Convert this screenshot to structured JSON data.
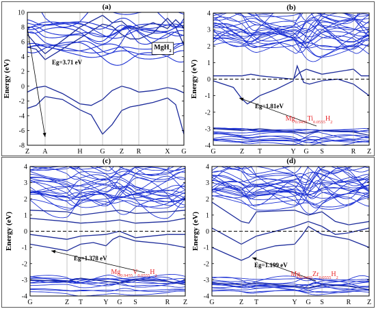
{
  "figure": {
    "panels": [
      {
        "label": "(a)",
        "ylabel": "Energy (eV)",
        "ylim": [
          -8,
          10
        ],
        "yticks": [
          -8,
          -6,
          -4,
          -2,
          0,
          2,
          4,
          6,
          8,
          10
        ],
        "kpoints": [
          "Z",
          "A",
          "H",
          "G",
          "Z",
          "R",
          "X",
          "G"
        ],
        "gap_label": "Eg=3.71 eV",
        "compound": "MgH2",
        "compound_parts": [
          {
            "t": "MgH",
            "sub": false
          },
          {
            "t": "2",
            "sub": true
          }
        ],
        "compound_color": "#000000",
        "compound_boxed": true,
        "fermi_line": false
      },
      {
        "label": "(b)",
        "ylabel": "Energy (eV)",
        "ylim": [
          -4,
          4
        ],
        "yticks": [
          -4,
          -3,
          -2,
          -1,
          0,
          1,
          2,
          3,
          4
        ],
        "kpoints": [
          "G",
          "Z",
          "T",
          "Y",
          "G",
          "S",
          "R",
          "Z"
        ],
        "gap_label": "Eg=1.81eV",
        "compound": "Mg0.9455Ti0.0555H2",
        "compound_parts": [
          {
            "t": "Mg",
            "sub": false
          },
          {
            "t": "0.9455",
            "sub": true
          },
          {
            "t": "Ti",
            "sub": false
          },
          {
            "t": "0.0555",
            "sub": true
          },
          {
            "t": "H",
            "sub": false
          },
          {
            "t": "2",
            "sub": true
          }
        ],
        "compound_color": "#e8262a",
        "compound_boxed": false,
        "fermi_line": true
      },
      {
        "label": "(c)",
        "ylabel": "Energy (eV)",
        "ylim": [
          -4,
          4
        ],
        "yticks": [
          -4,
          -3,
          -2,
          -1,
          0,
          1,
          2,
          3,
          4
        ],
        "kpoints": [
          "G",
          "Z",
          "T",
          "Y",
          "G",
          "S",
          "R",
          "Z"
        ],
        "gap_label": "Eg=1.378 eV",
        "compound": "Mg0.9455V0.0555H2",
        "compound_parts": [
          {
            "t": "Mg",
            "sub": false
          },
          {
            "t": "0.9455",
            "sub": true
          },
          {
            "t": "V",
            "sub": false
          },
          {
            "t": "0.0555",
            "sub": true
          },
          {
            "t": "H",
            "sub": false
          },
          {
            "t": "2",
            "sub": true
          }
        ],
        "compound_color": "#e8262a",
        "compound_boxed": false,
        "fermi_line": true
      },
      {
        "label": "(d)",
        "ylabel": "Energy (eV)",
        "ylim": [
          -4,
          4
        ],
        "yticks": [
          -4,
          -3,
          -2,
          -1,
          0,
          1,
          2,
          3,
          4
        ],
        "kpoints": [
          "G",
          "Z",
          "T",
          "Y",
          "G",
          "S",
          "R",
          "Z"
        ],
        "gap_label": "Eg=1.199 eV",
        "compound": "Mg0.9455Zr0.0555H2",
        "compound_parts": [
          {
            "t": "Mg",
            "sub": false
          },
          {
            "t": "0.9455",
            "sub": true
          },
          {
            "t": "Zr",
            "sub": false
          },
          {
            "t": "0.0555",
            "sub": true
          },
          {
            "t": "H",
            "sub": false
          },
          {
            "t": "2",
            "sub": true
          }
        ],
        "compound_color": "#e8262a",
        "compound_boxed": false,
        "fermi_line": true
      }
    ]
  },
  "chart_data": [
    {
      "type": "line",
      "title": "(a)",
      "ylabel": "Energy (eV)",
      "ylim": [
        -8,
        10
      ],
      "xticklabels": [
        "Z",
        "A",
        "H",
        "G",
        "Z",
        "R",
        "X",
        "G"
      ],
      "annotations": [
        "Eg=3.71 eV",
        "MgH2"
      ],
      "grid": false,
      "series": [
        {
          "x": [
            0,
            0.5,
            1,
            2,
            3,
            3.5,
            4,
            4.5,
            5,
            5.5,
            6,
            6.5,
            7
          ],
          "y": [
            5.3,
            5.0,
            3.6,
            6.5,
            8.4,
            8.1,
            7.0,
            6.4,
            6.4,
            7.2,
            9.2,
            8.0,
            5.6
          ]
        },
        {
          "x": [
            0,
            0.5,
            1,
            2,
            3,
            3.5,
            4,
            4.5,
            5,
            5.5,
            6,
            6.5,
            7
          ],
          "y": [
            7.0,
            5.6,
            4.4,
            8.0,
            9.6,
            8.6,
            8.8,
            7.8,
            7.9,
            8.6,
            7.8,
            9.0,
            7.9
          ]
        },
        {
          "x": [
            0,
            0.5,
            1,
            1.5,
            2,
            2.5,
            3,
            3.5,
            4,
            4.5,
            5,
            5.5,
            6,
            6.5,
            7
          ],
          "y": [
            -0.8,
            -0.2,
            0.0,
            -1.0,
            -2.4,
            -2.6,
            -1.8,
            -0.6,
            0.0,
            -0.3,
            -0.8,
            -0.6,
            -0.2,
            -0.4,
            -0.9
          ]
        },
        {
          "x": [
            0,
            0.5,
            1,
            1.5,
            2,
            2.5,
            3,
            3.5,
            4,
            4.5,
            5,
            5.5,
            6,
            6.5,
            7
          ],
          "y": [
            -3.0,
            -2.6,
            -1.4,
            -1.8,
            -3.2,
            -3.9,
            -6.5,
            -5.2,
            -3.3,
            -2.8,
            -2.6,
            -2.2,
            -1.6,
            -2.5,
            -6.5
          ]
        }
      ]
    },
    {
      "type": "line",
      "title": "(b)",
      "ylabel": "Energy (eV)",
      "ylim": [
        -4,
        4
      ],
      "xticklabels": [
        "G",
        "Z",
        "T",
        "Y",
        "G",
        "S",
        "R",
        "Z"
      ],
      "annotations": [
        "Eg=1.81eV",
        "Mg0.9455Ti0.0555H2"
      ],
      "grid": false,
      "series": [
        {
          "x": [
            0,
            1,
            1.5,
            2,
            2.5,
            3,
            3.5,
            4,
            5,
            6,
            6.5,
            7
          ],
          "y": [
            0.2,
            0.2,
            0.3,
            0.2,
            0.1,
            0.0,
            0.4,
            0.6,
            0.3,
            0.6,
            0.2,
            0.2
          ]
        },
        {
          "x": [
            0,
            0.7,
            1,
            1.3,
            1.6,
            2,
            2.5,
            3,
            3.3,
            3.8,
            4.2,
            5,
            5.5,
            6,
            7
          ],
          "y": [
            -0.1,
            -0.5,
            -1.2,
            -1.5,
            -1.3,
            -1.0,
            -0.6,
            -0.1,
            0.8,
            -0.2,
            -0.3,
            -0.1,
            0.0,
            -0.3,
            -1.0
          ]
        },
        {
          "x": [
            0,
            1,
            2,
            3,
            4,
            5,
            6,
            7
          ],
          "y": [
            -3.0,
            -3.1,
            -3.0,
            -3.2,
            -3.3,
            -3.1,
            -3.2,
            -3.4
          ]
        }
      ]
    },
    {
      "type": "line",
      "title": "(c)",
      "ylabel": "Energy (eV)",
      "ylim": [
        -4,
        4
      ],
      "xticklabels": [
        "G",
        "Z",
        "T",
        "Y",
        "G",
        "S",
        "R",
        "Z"
      ],
      "annotations": [
        "Eg=1.378 eV",
        "Mg0.9455V0.0555H2"
      ],
      "grid": false,
      "series": [
        {
          "x": [
            0,
            1,
            2,
            3,
            4,
            5,
            6,
            7
          ],
          "y": [
            1.3,
            1.2,
            1.0,
            1.2,
            1.3,
            1.1,
            1.2,
            1.3
          ]
        },
        {
          "x": [
            0,
            1,
            2,
            3,
            4,
            5,
            6,
            7
          ],
          "y": [
            0.8,
            0.6,
            0.5,
            0.6,
            0.7,
            0.5,
            0.6,
            0.8
          ]
        },
        {
          "x": [
            0,
            1,
            2,
            3,
            4,
            5,
            6,
            7
          ],
          "y": [
            -0.2,
            -0.5,
            -0.3,
            -0.2,
            0.0,
            -0.4,
            -0.2,
            -0.2
          ]
        },
        {
          "x": [
            0,
            0.5,
            1,
            1.5,
            2,
            2.5,
            3,
            3.5,
            4,
            5,
            6,
            7
          ],
          "y": [
            -0.8,
            -1.0,
            -1.2,
            -1.0,
            -0.8,
            -0.7,
            -0.9,
            -0.5,
            -0.3,
            -0.6,
            -0.8,
            -1.0
          ]
        },
        {
          "x": [
            0,
            1,
            2,
            3,
            4,
            5,
            6,
            7
          ],
          "y": [
            -3.0,
            -3.1,
            -2.9,
            -3.1,
            -3.2,
            -3.0,
            -3.1,
            -3.3
          ]
        }
      ]
    },
    {
      "type": "line",
      "title": "(d)",
      "ylabel": "Energy (eV)",
      "ylim": [
        -4,
        4
      ],
      "xticklabels": [
        "G",
        "Z",
        "T",
        "Y",
        "G",
        "S",
        "R",
        "Z"
      ],
      "annotations": [
        "Eg=1.199 eV",
        "Mg0.9455Zr0.0555H2"
      ],
      "grid": false,
      "series": [
        {
          "x": [
            0,
            1,
            1.5,
            2,
            3,
            4,
            5,
            5.5,
            6,
            7
          ],
          "y": [
            1.8,
            0.6,
            0.5,
            1.2,
            1.3,
            1.0,
            1.2,
            0.6,
            0.4,
            0.6
          ]
        },
        {
          "x": [
            0,
            0.5,
            1,
            2,
            3,
            4,
            5,
            5.5,
            6,
            7
          ],
          "y": [
            0.2,
            -0.3,
            -0.8,
            -0.3,
            0.3,
            0.6,
            0.3,
            -0.2,
            -0.1,
            0.2
          ]
        },
        {
          "x": [
            0,
            0.5,
            1,
            1.5,
            2,
            2.5,
            3,
            3.5,
            4,
            5,
            6,
            7
          ],
          "y": [
            -1.0,
            -1.4,
            -1.8,
            -1.6,
            -1.2,
            -0.9,
            -0.8,
            -0.3,
            0.3,
            -0.2,
            -0.5,
            -1.0
          ]
        },
        {
          "x": [
            0,
            1,
            2,
            3,
            4,
            5,
            6,
            7
          ],
          "y": [
            -3.2,
            -3.3,
            -3.2,
            -3.4,
            -3.5,
            -3.3,
            -3.4,
            -3.6
          ]
        }
      ]
    }
  ]
}
